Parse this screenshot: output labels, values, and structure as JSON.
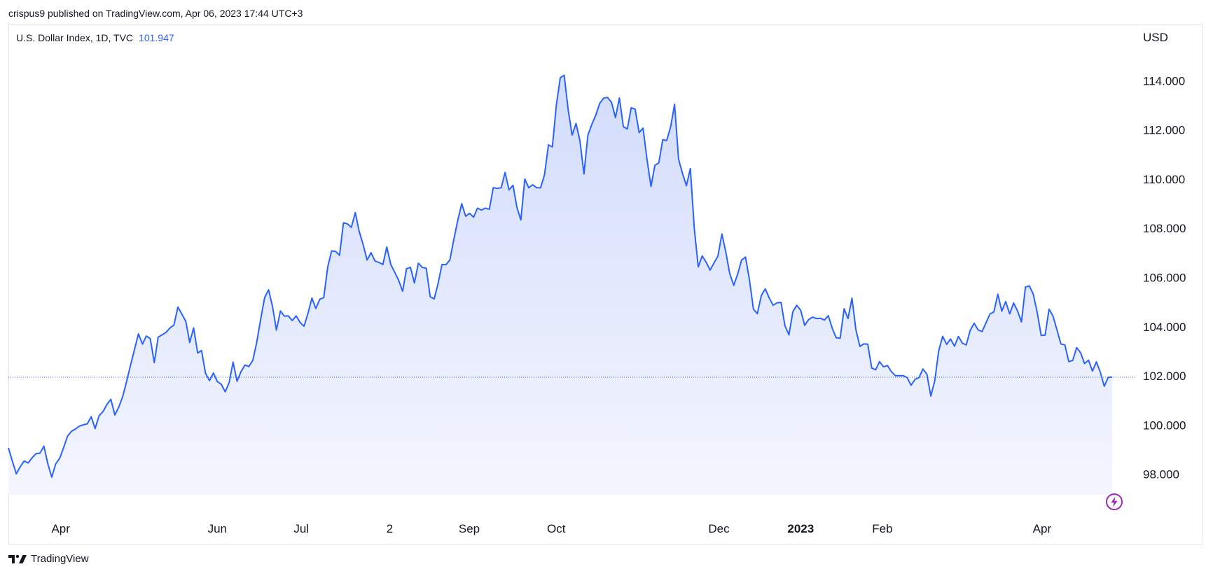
{
  "header": {
    "published": "crispus9 published on TradingView.com, Apr 06, 2023 17:44 UTC+3"
  },
  "legend": {
    "symbol": "U.S. Dollar Index, 1D, TVC",
    "last": "101.947"
  },
  "axis": {
    "unit": "USD"
  },
  "footer": {
    "brand": "TradingView"
  },
  "colors": {
    "line": "#2962ff",
    "fill_top": "#d2dcfc",
    "fill_bottom": "#f4f6fe",
    "last_price_line": "#2962ff",
    "bolt": "#9c27b0"
  },
  "icons": {
    "brand": "tradingview-logo-icon",
    "bolt": "lightning-bolt-icon"
  },
  "chart_data": {
    "type": "area",
    "title": "U.S. Dollar Index, 1D, TVC",
    "ylabel": "USD",
    "ylim": [
      96.47,
      116.37
    ],
    "yticks": [
      "114.000",
      "112.000",
      "110.000",
      "108.000",
      "106.000",
      "104.000",
      "102.000",
      "100.000",
      "98.000"
    ],
    "xtick_labels": [
      {
        "label": "Apr",
        "pos": 0.0474,
        "bold": false
      },
      {
        "label": "Jun",
        "pos": 0.1893,
        "bold": false
      },
      {
        "label": "Jul",
        "pos": 0.2654,
        "bold": false
      },
      {
        "label": "2",
        "pos": 0.3455,
        "bold": false
      },
      {
        "label": "Sep",
        "pos": 0.4175,
        "bold": false
      },
      {
        "label": "Oct",
        "pos": 0.4963,
        "bold": false
      },
      {
        "label": "Dec",
        "pos": 0.6437,
        "bold": false
      },
      {
        "label": "2023",
        "pos": 0.7178,
        "bold": true
      },
      {
        "label": "Feb",
        "pos": 0.7918,
        "bold": false
      },
      {
        "label": "Apr",
        "pos": 0.9365,
        "bold": false
      }
    ],
    "last_value": 101.947,
    "series": [
      {
        "name": "U.S. Dollar Index",
        "values": [
          99.07,
          98.54,
          98.02,
          98.31,
          98.54,
          98.46,
          98.67,
          98.84,
          98.86,
          99.14,
          98.43,
          97.88,
          98.42,
          98.65,
          99.08,
          99.55,
          99.75,
          99.84,
          99.96,
          100.01,
          100.05,
          100.34,
          99.86,
          100.38,
          100.55,
          100.84,
          101.05,
          100.41,
          100.73,
          101.16,
          101.79,
          102.45,
          103.08,
          103.71,
          103.29,
          103.62,
          103.51,
          102.54,
          103.58,
          103.67,
          103.77,
          103.95,
          104.07,
          104.8,
          104.51,
          104.22,
          103.36,
          103.95,
          102.93,
          103.03,
          102.11,
          101.81,
          102.12,
          101.77,
          101.66,
          101.35,
          101.73,
          102.56,
          101.78,
          102.17,
          102.44,
          102.38,
          102.63,
          103.37,
          104.3,
          105.19,
          105.5,
          104.82,
          103.86,
          104.64,
          104.43,
          104.44,
          104.25,
          104.44,
          104.17,
          104.02,
          104.55,
          105.16,
          104.74,
          105.12,
          105.18,
          106.42,
          107.08,
          107.06,
          106.9,
          108.22,
          108.18,
          108.04,
          108.64,
          107.87,
          107.33,
          106.71,
          107.01,
          106.67,
          106.61,
          106.53,
          107.24,
          106.53,
          106.21,
          105.89,
          105.44,
          106.36,
          106.41,
          105.78,
          106.58,
          106.41,
          106.38,
          105.22,
          105.13,
          105.75,
          106.53,
          106.52,
          106.72,
          107.55,
          108.33,
          109.0,
          108.49,
          108.61,
          108.45,
          108.82,
          108.74,
          108.82,
          108.77,
          109.65,
          109.62,
          109.65,
          110.27,
          109.56,
          109.75,
          108.85,
          108.34,
          110.0,
          109.65,
          109.77,
          109.65,
          109.65,
          110.18,
          111.39,
          111.31,
          113.01,
          114.12,
          114.22,
          112.81,
          111.79,
          112.26,
          111.55,
          110.21,
          111.78,
          112.22,
          112.6,
          113.08,
          113.29,
          113.32,
          113.12,
          112.5,
          113.3,
          112.13,
          112.04,
          112.9,
          112.84,
          111.89,
          112.07,
          110.81,
          109.7,
          110.56,
          110.66,
          111.6,
          111.57,
          112.13,
          113.04,
          110.81,
          110.23,
          109.73,
          110.43,
          107.99,
          106.43,
          106.88,
          106.62,
          106.3,
          106.59,
          106.87,
          107.77,
          107.03,
          106.15,
          105.68,
          106.14,
          106.71,
          106.83,
          105.89,
          104.71,
          104.53,
          105.27,
          105.54,
          105.17,
          104.87,
          104.97,
          104.99,
          104.04,
          103.67,
          104.61,
          104.87,
          104.67,
          104.05,
          104.29,
          104.39,
          104.33,
          104.34,
          104.27,
          104.45,
          103.93,
          103.55,
          103.53,
          104.73,
          104.33,
          105.16,
          103.88,
          103.2,
          103.3,
          103.29,
          102.32,
          102.25,
          102.58,
          102.37,
          102.42,
          102.17,
          102.01,
          102.01,
          102.01,
          101.93,
          101.62,
          101.86,
          101.93,
          102.28,
          102.07,
          101.18,
          101.8,
          103.01,
          103.61,
          103.28,
          103.5,
          103.21,
          103.6,
          103.33,
          103.26,
          103.86,
          104.14,
          103.87,
          103.8,
          104.16,
          104.52,
          104.6,
          105.32,
          104.63,
          105.02,
          104.52,
          104.96,
          104.64,
          104.19,
          105.61,
          105.66,
          105.32,
          104.56,
          103.64,
          103.66,
          104.71,
          104.43,
          103.87,
          103.3,
          103.26,
          102.58,
          102.63,
          103.15,
          102.94,
          102.5,
          102.64,
          102.2,
          102.57,
          102.15,
          101.58,
          101.94,
          101.95
        ]
      }
    ],
    "grid": false,
    "legend_position": "top-left"
  }
}
